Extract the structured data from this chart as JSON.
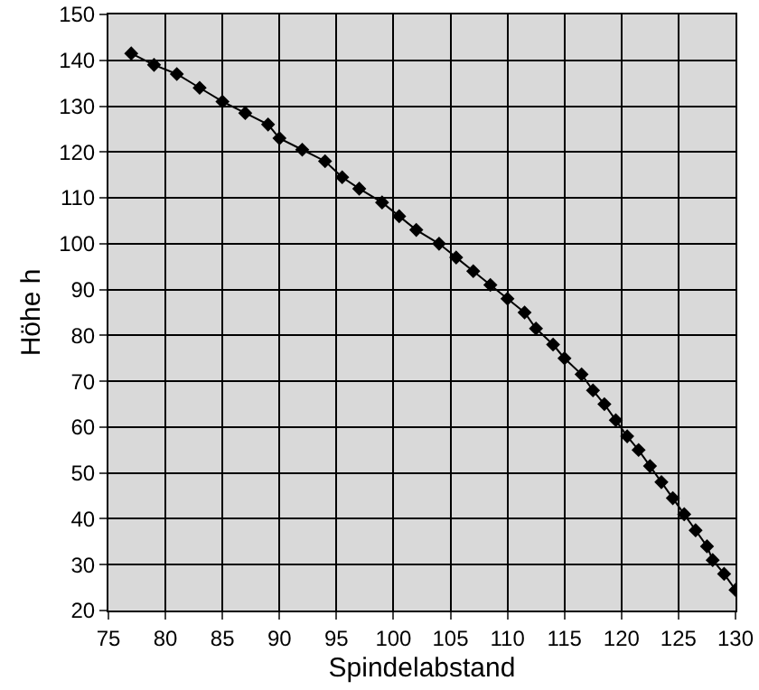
{
  "chart_data": {
    "type": "line",
    "xlabel": "Spindelabstand",
    "ylabel": "Höhe h",
    "x": [
      77,
      79,
      81,
      83,
      85,
      87,
      89,
      90,
      92,
      94,
      95.5,
      97,
      99,
      100.5,
      102,
      104,
      105.5,
      107,
      108.5,
      110,
      111.5,
      112.5,
      114,
      115,
      116.5,
      117.5,
      118.5,
      119.5,
      120.5,
      121.5,
      122.5,
      123.5,
      124.5,
      125.5,
      126.5,
      127.5,
      128,
      129,
      130
    ],
    "series": [
      {
        "color": "#000000",
        "values": [
          141.5,
          139,
          137,
          134,
          131,
          128.5,
          126,
          123,
          120.5,
          118,
          114.5,
          112,
          109,
          106,
          103,
          100,
          97,
          94,
          91,
          88,
          85,
          81.5,
          78,
          75,
          71.5,
          68,
          65,
          61.5,
          58,
          55,
          51.5,
          48,
          44.5,
          41,
          37.5,
          34,
          31,
          28,
          24.5
        ]
      }
    ],
    "xlim": [
      75,
      130
    ],
    "xticks": [
      75,
      80,
      85,
      90,
      95,
      100,
      105,
      110,
      115,
      120,
      125,
      130
    ],
    "ylim": [
      20,
      150
    ],
    "yticks": [
      20,
      30,
      40,
      50,
      60,
      70,
      80,
      90,
      100,
      110,
      120,
      130,
      140,
      150
    ],
    "grid": true,
    "marker": "diamond",
    "line_style": "solid",
    "legend": false
  }
}
